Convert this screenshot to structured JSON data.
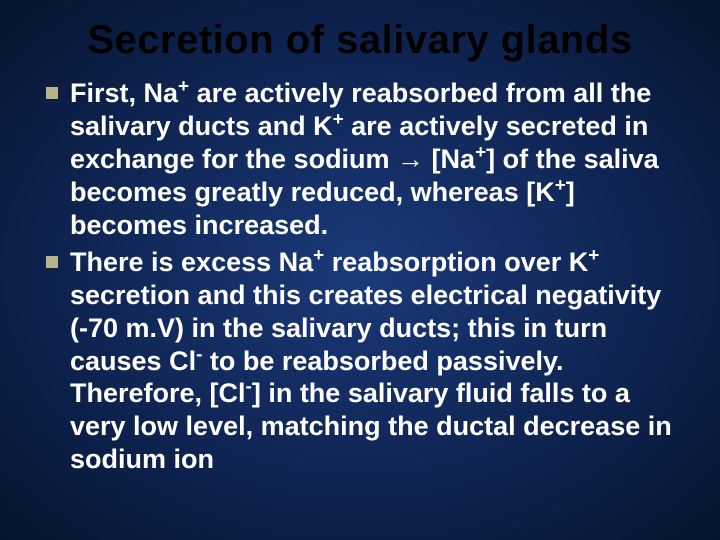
{
  "slide": {
    "title": "Secretion of  salivary glands",
    "title_color": "#000000",
    "title_fontsize": 40,
    "background_gradient": [
      "#1a3a7a",
      "#0f2452",
      "#06142f"
    ],
    "bullet_marker_color": "#b9b28a",
    "body_text_color": "#ffffff",
    "body_fontsize": 27,
    "bullets": [
      {
        "html": "First, Na<sup>+</sup> are actively reabsorbed from all the salivary ducts and K<sup>+</sup> are actively secreted in exchange for the sodium → [Na<sup>+</sup>] of the saliva becomes greatly reduced, whereas [K<sup>+</sup>] becomes increased."
      },
      {
        "html": "There is excess Na<sup>+</sup> reabsorption over K<sup>+</sup> secretion and this creates electrical negativity (-70 m.V) in the salivary ducts; this in turn causes Cl<sup>-</sup> to be reabsorbed passively. Therefore, [Cl<sup>-</sup>] in the salivary fluid falls to a very low level, matching the ductal decrease in sodium ion"
      }
    ]
  }
}
